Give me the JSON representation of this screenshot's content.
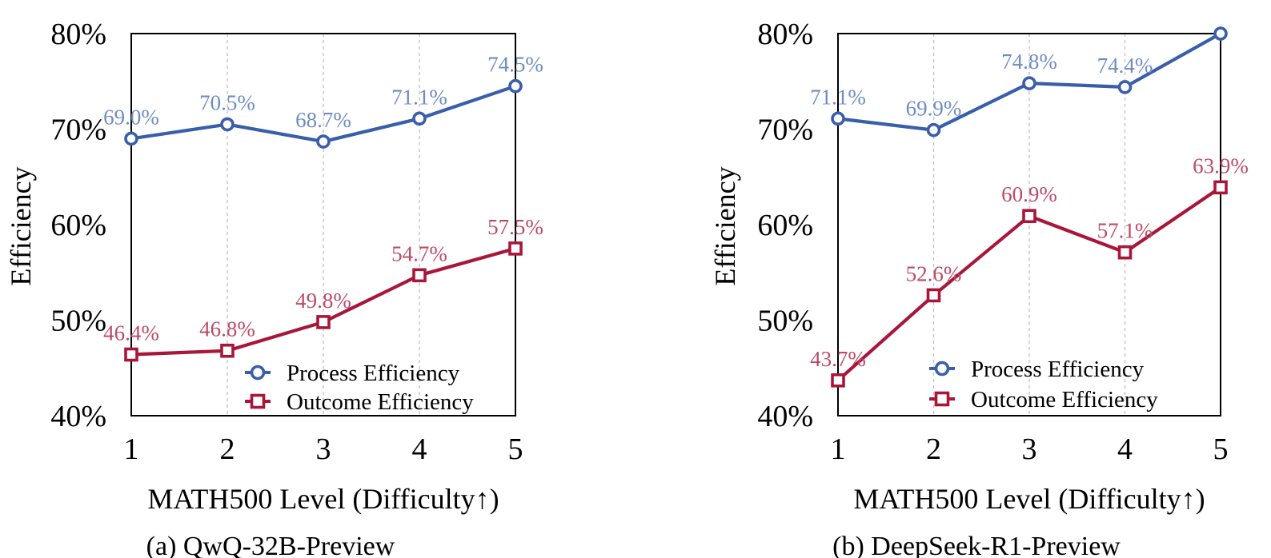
{
  "colors": {
    "process": "#3A5FAA",
    "process_label": "#6E8CC2",
    "outcome": "#A8173A",
    "outcome_label": "#BC4A66",
    "grid": "#BFBFBF"
  },
  "chart_data": [
    {
      "type": "line",
      "caption": "(a) QwQ-32B-Preview",
      "xlabel": "MATH500 Level (Difficulty↑)",
      "ylabel": "Efficiency",
      "categories": [
        "1",
        "2",
        "3",
        "4",
        "5"
      ],
      "ylim": [
        40,
        80
      ],
      "yticks": [
        "40%",
        "50%",
        "60%",
        "70%",
        "80%"
      ],
      "grid": "vertical dashed",
      "legend_position": "lower-right",
      "series": [
        {
          "name": "Process Efficiency",
          "marker": "circle",
          "values": [
            69.0,
            70.5,
            68.7,
            71.1,
            74.5
          ],
          "labels": [
            "69.0%",
            "70.5%",
            "68.7%",
            "71.1%",
            "74.5%"
          ]
        },
        {
          "name": "Outcome Efficiency",
          "marker": "square",
          "values": [
            46.4,
            46.8,
            49.8,
            54.7,
            57.5
          ],
          "labels": [
            "46.4%",
            "46.8%",
            "49.8%",
            "54.7%",
            "57.5%"
          ]
        }
      ]
    },
    {
      "type": "line",
      "caption": "(b) DeepSeek-R1-Preview",
      "xlabel": "MATH500 Level (Difficulty↑)",
      "ylabel": "Efficiency",
      "categories": [
        "1",
        "2",
        "3",
        "4",
        "5"
      ],
      "ylim": [
        40,
        80
      ],
      "yticks": [
        "40%",
        "50%",
        "60%",
        "70%",
        "80%"
      ],
      "grid": "vertical dashed",
      "legend_position": "lower-right",
      "series": [
        {
          "name": "Process Efficiency",
          "marker": "circle",
          "values": [
            71.1,
            69.9,
            74.8,
            74.4,
            80.0
          ],
          "labels": [
            "71.1%",
            "69.9%",
            "74.8%",
            "74.4%",
            ""
          ]
        },
        {
          "name": "Outcome Efficiency",
          "marker": "square",
          "values": [
            43.7,
            52.6,
            60.9,
            57.1,
            63.9
          ],
          "labels": [
            "43.7%",
            "52.6%",
            "60.9%",
            "57.1%",
            "63.9%"
          ]
        }
      ]
    }
  ]
}
